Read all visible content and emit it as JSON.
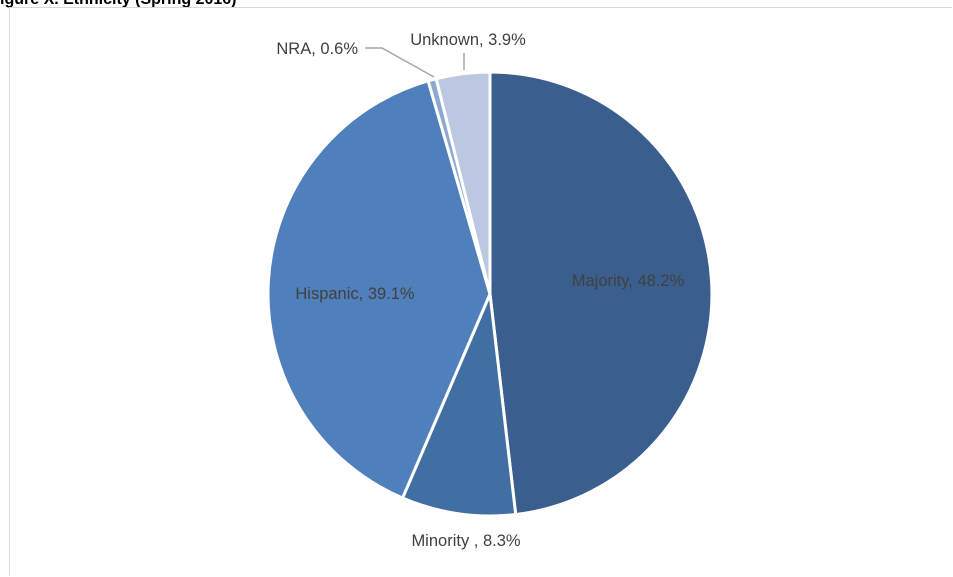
{
  "heading": "igure X. Ethnicity (Spring 2016)",
  "chart_data": {
    "type": "pie",
    "title": "",
    "slices": [
      {
        "label": "Majority, 48.2%",
        "value": 48.2,
        "color": "#3a5f8e",
        "label_color": "#404040"
      },
      {
        "label": "Minority , 8.3%",
        "value": 8.3,
        "color": "#416ea3",
        "label_color": "#404040"
      },
      {
        "label": "Hispanic, 39.1%",
        "value": 39.1,
        "color": "#4f80bb",
        "label_color": "#404040"
      },
      {
        "label": "NRA, 0.6%",
        "value": 0.6,
        "color": "#8ea9d1",
        "label_color": "#404040"
      },
      {
        "label": "Unknown, 3.9%",
        "value": 3.9,
        "color": "#bcc8e2",
        "label_color": "#404040"
      }
    ],
    "start": "12 o'clock",
    "direction": "clockwise",
    "slice_border_color": "#ffffff",
    "leader_line_color": "#a6a6a6"
  }
}
